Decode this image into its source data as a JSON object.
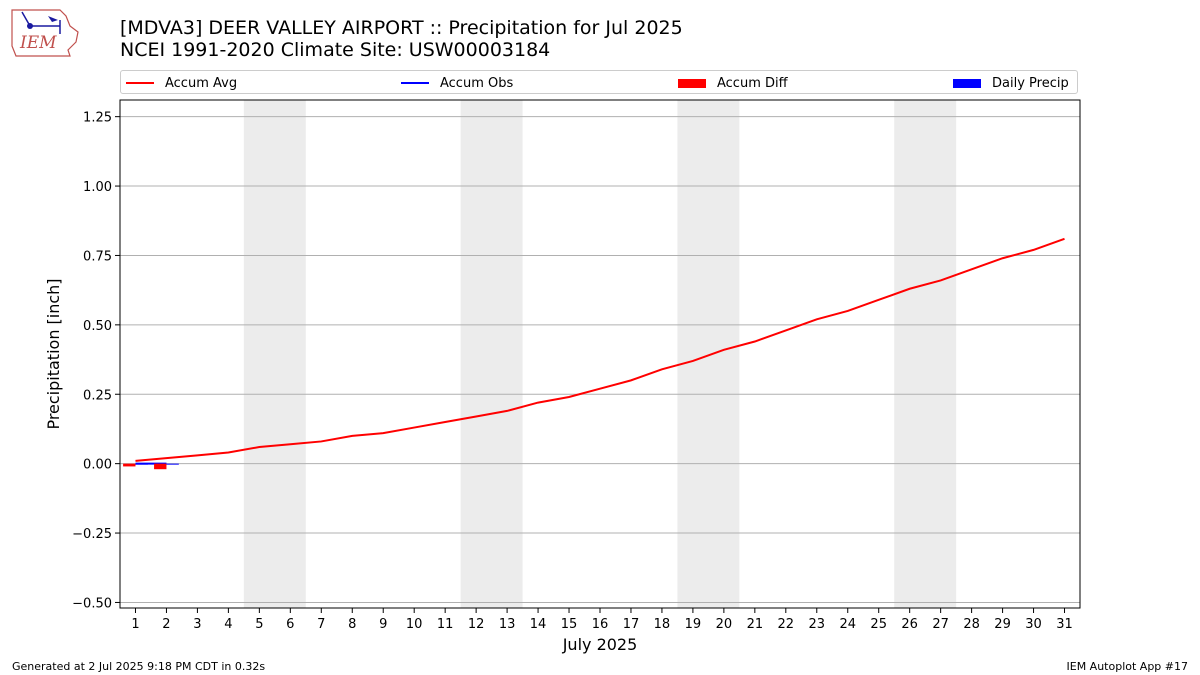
{
  "title_line1": "[MDVA3] DEER VALLEY AIRPORT :: Precipitation for Jul 2025",
  "title_line2": "NCEI 1991-2020 Climate Site: USW00003184",
  "logo_text": "IEM",
  "footer_left": "Generated at 2 Jul 2025 9:18 PM CDT in 0.32s",
  "footer_right": "IEM Autoplot App #17",
  "colors": {
    "accum_avg": "#ff0000",
    "accum_obs": "#0000ff",
    "accum_diff": "#ff0000",
    "daily_precip": "#0000ff",
    "weekend_band": "#ececec",
    "grid": "#b0b0b0"
  },
  "chart_data": {
    "type": "line",
    "xlabel": "July 2025",
    "ylabel": "Precipitation [inch]",
    "x": [
      1,
      2,
      3,
      4,
      5,
      6,
      7,
      8,
      9,
      10,
      11,
      12,
      13,
      14,
      15,
      16,
      17,
      18,
      19,
      20,
      21,
      22,
      23,
      24,
      25,
      26,
      27,
      28,
      29,
      30,
      31
    ],
    "xlim": [
      0.5,
      31.5
    ],
    "ylim": [
      -0.52,
      1.31
    ],
    "yticks": [
      -0.5,
      -0.25,
      0,
      0.25,
      0.5,
      0.75,
      1.0,
      1.25
    ],
    "ytick_labels": [
      "−0.50",
      "−0.25",
      "0.00",
      "0.25",
      "0.50",
      "0.75",
      "1.00",
      "1.25"
    ],
    "grid": "y",
    "legend_placement": "top, above plot",
    "shaded_weekends": [
      [
        5,
        6
      ],
      [
        12,
        13
      ],
      [
        19,
        20
      ],
      [
        26,
        27
      ]
    ],
    "series": [
      {
        "name": "Accum Avg",
        "kind": "line",
        "x": [
          1,
          2,
          3,
          4,
          5,
          6,
          7,
          8,
          9,
          10,
          11,
          12,
          13,
          14,
          15,
          16,
          17,
          18,
          19,
          20,
          21,
          22,
          23,
          24,
          25,
          26,
          27,
          28,
          29,
          30,
          31
        ],
        "values": [
          0.01,
          0.02,
          0.03,
          0.04,
          0.06,
          0.07,
          0.08,
          0.1,
          0.11,
          0.13,
          0.15,
          0.17,
          0.19,
          0.22,
          0.24,
          0.27,
          0.3,
          0.34,
          0.37,
          0.41,
          0.44,
          0.48,
          0.52,
          0.55,
          0.59,
          0.63,
          0.66,
          0.7,
          0.74,
          0.77,
          0.81
        ]
      },
      {
        "name": "Accum Obs",
        "kind": "line",
        "x": [
          1,
          2
        ],
        "values": [
          0.0,
          0.0
        ]
      },
      {
        "name": "Accum Diff",
        "kind": "bar",
        "x": [
          1,
          2
        ],
        "values": [
          -0.01,
          -0.02
        ]
      },
      {
        "name": "Daily Precip",
        "kind": "bar",
        "x": [
          1,
          2
        ],
        "values": [
          0.0,
          0.0
        ]
      }
    ]
  }
}
